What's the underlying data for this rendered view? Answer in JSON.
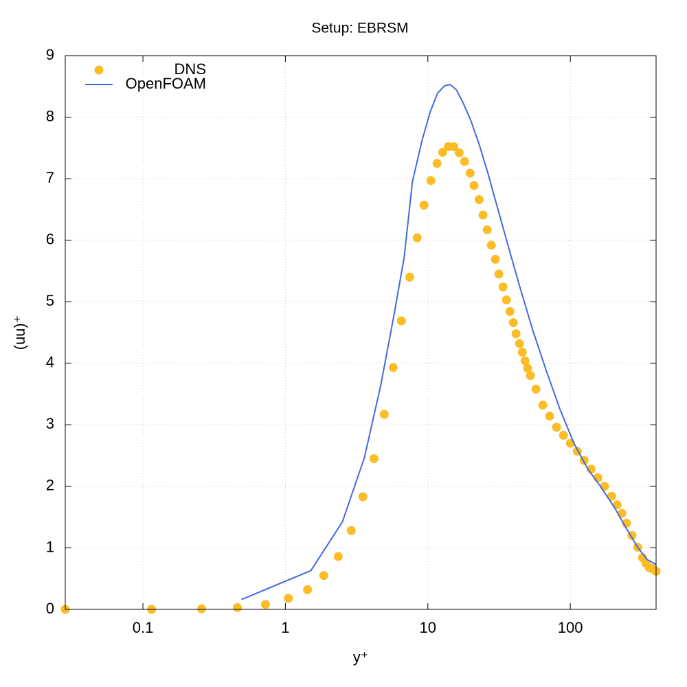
{
  "chart_data": {
    "type": "line",
    "title": "Setup: EBRSM",
    "x_label": "y⁺",
    "y_label": "(uu)⁺",
    "xscale": "log",
    "grid": true,
    "legend": "top left",
    "xlim": [
      0.0285,
      400
    ],
    "xticks": [
      0.1,
      1,
      10,
      100
    ],
    "ylim": [
      0,
      9
    ],
    "yticks": [
      0,
      1,
      2,
      3,
      4,
      5,
      6,
      7,
      8,
      9
    ],
    "series": [
      {
        "name": "DNS",
        "color": "#fbbc25",
        "style": "points",
        "x": [
          0.0285,
          0.115,
          0.258,
          0.46,
          0.725,
          1.05,
          1.43,
          1.86,
          2.35,
          2.9,
          3.5,
          4.19,
          4.94,
          5.71,
          6.52,
          7.45,
          8.41,
          9.4,
          10.5,
          11.6,
          12.7,
          13.9,
          15.2,
          16.6,
          18.1,
          19.8,
          21.1,
          22.9,
          24.4,
          26.1,
          27.9,
          29.8,
          31.5,
          33.7,
          35.6,
          37.7,
          39.8,
          41.6,
          44,
          46,
          48.1,
          50.2,
          52.5,
          57.4,
          64.1,
          71.6,
          80.1,
          89.5,
          100,
          112,
          125,
          140,
          156,
          174,
          195,
          213,
          230,
          248,
          271,
          297,
          321,
          339,
          358,
          378,
          400
        ],
        "values": [
          0,
          0,
          0.01,
          0.03,
          0.08,
          0.18,
          0.32,
          0.55,
          0.86,
          1.28,
          1.83,
          2.45,
          3.17,
          3.93,
          4.69,
          5.4,
          6.04,
          6.57,
          6.97,
          7.25,
          7.43,
          7.52,
          7.52,
          7.42,
          7.28,
          7.09,
          6.89,
          6.66,
          6.41,
          6.17,
          5.92,
          5.69,
          5.45,
          5.24,
          5.03,
          4.84,
          4.66,
          4.48,
          4.32,
          4.18,
          4.04,
          3.92,
          3.8,
          3.58,
          3.32,
          3.14,
          2.96,
          2.83,
          2.7,
          2.57,
          2.42,
          2.28,
          2.14,
          2.0,
          1.84,
          1.7,
          1.56,
          1.4,
          1.2,
          1.01,
          0.84,
          0.75,
          0.68,
          0.66,
          0.62
        ]
      },
      {
        "name": "OpenFOAM",
        "color": "#4169e1",
        "style": "line",
        "x": [
          0.492,
          1.51,
          2.51,
          3.58,
          4.67,
          5.77,
          6.82,
          7.79,
          9.1,
          10.4,
          11.7,
          13.1,
          14.4,
          15.9,
          17.7,
          20,
          22.9,
          26.4,
          30.8,
          36.8,
          44.5,
          54.3,
          67.8,
          84.7,
          106,
          132,
          165,
          206,
          248,
          297,
          346,
          400
        ],
        "values": [
          0.16,
          0.63,
          1.42,
          2.46,
          3.64,
          4.77,
          5.72,
          6.95,
          7.62,
          8.09,
          8.39,
          8.51,
          8.53,
          8.44,
          8.23,
          7.95,
          7.56,
          7.09,
          6.53,
          5.89,
          5.22,
          4.55,
          3.88,
          3.25,
          2.7,
          2.29,
          1.98,
          1.64,
          1.31,
          1.01,
          0.81,
          0.73
        ]
      }
    ]
  }
}
